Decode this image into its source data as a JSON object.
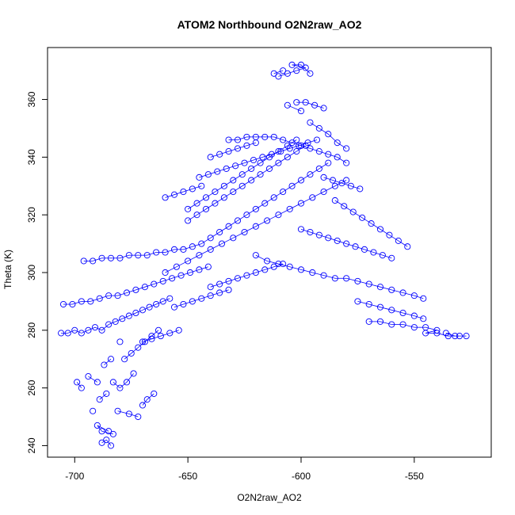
{
  "chart_data": {
    "type": "scatter",
    "title": "ATOM2 Northbound O2N2raw_AO2",
    "xlabel": "O2N2raw_AO2",
    "ylabel": "Theta (K)",
    "xlim": [
      -712,
      -516
    ],
    "ylim": [
      236,
      378
    ],
    "xticks": [
      -700,
      -650,
      -600,
      -550
    ],
    "yticks": [
      240,
      260,
      280,
      300,
      320,
      340,
      360
    ],
    "marker": "open-circle",
    "color": "#0000ff",
    "grid": false,
    "series": [
      {
        "values": "approximate point cloud of O2N2raw_AO2 vs Theta",
        "points": [
          [
            -688,
            241
          ],
          [
            -686,
            242
          ],
          [
            -684,
            240
          ],
          [
            -683,
            244
          ],
          [
            -688,
            245
          ],
          [
            -690,
            247
          ],
          [
            -685,
            245
          ],
          [
            -692,
            252
          ],
          [
            -689,
            256
          ],
          [
            -686,
            258
          ],
          [
            -683,
            262
          ],
          [
            -680,
            260
          ],
          [
            -677,
            262
          ],
          [
            -674,
            265
          ],
          [
            -690,
            262
          ],
          [
            -694,
            264
          ],
          [
            -697,
            260
          ],
          [
            -699,
            262
          ],
          [
            -681,
            252
          ],
          [
            -676,
            251
          ],
          [
            -672,
            250
          ],
          [
            -670,
            254
          ],
          [
            -668,
            256
          ],
          [
            -665,
            258
          ],
          [
            -678,
            270
          ],
          [
            -675,
            272
          ],
          [
            -672,
            274
          ],
          [
            -669,
            276
          ],
          [
            -666,
            278
          ],
          [
            -663,
            280
          ],
          [
            -680,
            276
          ],
          [
            -684,
            270
          ],
          [
            -687,
            268
          ],
          [
            -706,
            279
          ],
          [
            -703,
            279
          ],
          [
            -700,
            280
          ],
          [
            -697,
            279
          ],
          [
            -694,
            280
          ],
          [
            -691,
            281
          ],
          [
            -688,
            280
          ],
          [
            -685,
            282
          ],
          [
            -682,
            283
          ],
          [
            -679,
            284
          ],
          [
            -676,
            285
          ],
          [
            -673,
            286
          ],
          [
            -670,
            287
          ],
          [
            -667,
            288
          ],
          [
            -664,
            289
          ],
          [
            -661,
            290
          ],
          [
            -658,
            291
          ],
          [
            -705,
            289
          ],
          [
            -701,
            289
          ],
          [
            -697,
            290
          ],
          [
            -693,
            290
          ],
          [
            -689,
            291
          ],
          [
            -685,
            292
          ],
          [
            -681,
            292
          ],
          [
            -677,
            293
          ],
          [
            -673,
            294
          ],
          [
            -669,
            295
          ],
          [
            -665,
            296
          ],
          [
            -661,
            297
          ],
          [
            -657,
            298
          ],
          [
            -653,
            299
          ],
          [
            -649,
            300
          ],
          [
            -645,
            301
          ],
          [
            -641,
            302
          ],
          [
            -696,
            304
          ],
          [
            -692,
            304
          ],
          [
            -688,
            305
          ],
          [
            -684,
            305
          ],
          [
            -680,
            305
          ],
          [
            -676,
            306
          ],
          [
            -672,
            306
          ],
          [
            -668,
            306
          ],
          [
            -664,
            307
          ],
          [
            -660,
            307
          ],
          [
            -656,
            308
          ],
          [
            -652,
            308
          ],
          [
            -648,
            309
          ],
          [
            -644,
            310
          ],
          [
            -640,
            312
          ],
          [
            -636,
            314
          ],
          [
            -632,
            316
          ],
          [
            -628,
            318
          ],
          [
            -624,
            320
          ],
          [
            -620,
            322
          ],
          [
            -616,
            324
          ],
          [
            -612,
            326
          ],
          [
            -608,
            328
          ],
          [
            -604,
            330
          ],
          [
            -600,
            332
          ],
          [
            -596,
            334
          ],
          [
            -592,
            336
          ],
          [
            -588,
            338
          ],
          [
            -650,
            318
          ],
          [
            -646,
            320
          ],
          [
            -642,
            322
          ],
          [
            -638,
            324
          ],
          [
            -634,
            326
          ],
          [
            -630,
            328
          ],
          [
            -626,
            330
          ],
          [
            -622,
            332
          ],
          [
            -618,
            334
          ],
          [
            -614,
            336
          ],
          [
            -610,
            338
          ],
          [
            -606,
            340
          ],
          [
            -602,
            342
          ],
          [
            -598,
            344
          ],
          [
            -645,
            333
          ],
          [
            -641,
            334
          ],
          [
            -637,
            335
          ],
          [
            -633,
            336
          ],
          [
            -629,
            337
          ],
          [
            -625,
            338
          ],
          [
            -621,
            339
          ],
          [
            -617,
            340
          ],
          [
            -613,
            341
          ],
          [
            -609,
            342
          ],
          [
            -605,
            343
          ],
          [
            -601,
            344
          ],
          [
            -597,
            345
          ],
          [
            -593,
            346
          ],
          [
            -632,
            346
          ],
          [
            -628,
            346
          ],
          [
            -624,
            347
          ],
          [
            -620,
            347
          ],
          [
            -616,
            347
          ],
          [
            -612,
            347
          ],
          [
            -608,
            346
          ],
          [
            -604,
            345
          ],
          [
            -600,
            344
          ],
          [
            -596,
            343
          ],
          [
            -592,
            342
          ],
          [
            -588,
            341
          ],
          [
            -584,
            340
          ],
          [
            -580,
            338
          ],
          [
            -610,
            368
          ],
          [
            -606,
            369
          ],
          [
            -602,
            370
          ],
          [
            -598,
            371
          ],
          [
            -604,
            372
          ],
          [
            -600,
            372
          ],
          [
            -596,
            369
          ],
          [
            -612,
            369
          ],
          [
            -608,
            370
          ],
          [
            -602,
            359
          ],
          [
            -598,
            359
          ],
          [
            -594,
            358
          ],
          [
            -590,
            357
          ],
          [
            -606,
            358
          ],
          [
            -600,
            356
          ],
          [
            -596,
            352
          ],
          [
            -592,
            350
          ],
          [
            -588,
            348
          ],
          [
            -584,
            345
          ],
          [
            -580,
            343
          ],
          [
            -660,
            300
          ],
          [
            -655,
            302
          ],
          [
            -650,
            304
          ],
          [
            -645,
            306
          ],
          [
            -640,
            308
          ],
          [
            -635,
            310
          ],
          [
            -630,
            312
          ],
          [
            -625,
            314
          ],
          [
            -620,
            316
          ],
          [
            -615,
            318
          ],
          [
            -610,
            320
          ],
          [
            -605,
            322
          ],
          [
            -600,
            324
          ],
          [
            -595,
            326
          ],
          [
            -590,
            328
          ],
          [
            -585,
            330
          ],
          [
            -580,
            332
          ],
          [
            -620,
            306
          ],
          [
            -615,
            304
          ],
          [
            -610,
            303
          ],
          [
            -605,
            302
          ],
          [
            -600,
            301
          ],
          [
            -595,
            300
          ],
          [
            -590,
            299
          ],
          [
            -585,
            298
          ],
          [
            -580,
            298
          ],
          [
            -575,
            297
          ],
          [
            -570,
            296
          ],
          [
            -565,
            295
          ],
          [
            -560,
            294
          ],
          [
            -555,
            293
          ],
          [
            -550,
            292
          ],
          [
            -546,
            291
          ],
          [
            -575,
            290
          ],
          [
            -570,
            289
          ],
          [
            -565,
            288
          ],
          [
            -560,
            287
          ],
          [
            -555,
            286
          ],
          [
            -550,
            285
          ],
          [
            -546,
            284
          ],
          [
            -570,
            283
          ],
          [
            -565,
            283
          ],
          [
            -560,
            282
          ],
          [
            -555,
            282
          ],
          [
            -550,
            281
          ],
          [
            -545,
            281
          ],
          [
            -540,
            280
          ],
          [
            -545,
            279
          ],
          [
            -540,
            279
          ],
          [
            -535,
            278
          ],
          [
            -530,
            278
          ],
          [
            -527,
            278
          ],
          [
            -536,
            279
          ],
          [
            -532,
            278
          ],
          [
            -600,
            315
          ],
          [
            -596,
            314
          ],
          [
            -592,
            313
          ],
          [
            -588,
            312
          ],
          [
            -584,
            311
          ],
          [
            -580,
            310
          ],
          [
            -576,
            309
          ],
          [
            -572,
            308
          ],
          [
            -568,
            307
          ],
          [
            -564,
            306
          ],
          [
            -560,
            305
          ],
          [
            -640,
            295
          ],
          [
            -636,
            296
          ],
          [
            -632,
            297
          ],
          [
            -628,
            298
          ],
          [
            -624,
            299
          ],
          [
            -620,
            300
          ],
          [
            -616,
            301
          ],
          [
            -612,
            302
          ],
          [
            -608,
            303
          ],
          [
            -656,
            288
          ],
          [
            -652,
            289
          ],
          [
            -648,
            290
          ],
          [
            -644,
            291
          ],
          [
            -640,
            292
          ],
          [
            -636,
            293
          ],
          [
            -632,
            294
          ],
          [
            -670,
            276
          ],
          [
            -666,
            277
          ],
          [
            -662,
            278
          ],
          [
            -658,
            279
          ],
          [
            -654,
            280
          ],
          [
            -650,
            322
          ],
          [
            -646,
            324
          ],
          [
            -642,
            326
          ],
          [
            -638,
            328
          ],
          [
            -634,
            330
          ],
          [
            -630,
            332
          ],
          [
            -626,
            334
          ],
          [
            -622,
            336
          ],
          [
            -618,
            338
          ],
          [
            -614,
            340
          ],
          [
            -610,
            342
          ],
          [
            -606,
            344
          ],
          [
            -602,
            346
          ],
          [
            -585,
            325
          ],
          [
            -581,
            323
          ],
          [
            -577,
            321
          ],
          [
            -573,
            319
          ],
          [
            -569,
            317
          ],
          [
            -565,
            315
          ],
          [
            -561,
            313
          ],
          [
            -557,
            311
          ],
          [
            -553,
            309
          ],
          [
            -590,
            333
          ],
          [
            -586,
            332
          ],
          [
            -582,
            331
          ],
          [
            -578,
            330
          ],
          [
            -574,
            329
          ],
          [
            -640,
            340
          ],
          [
            -636,
            341
          ],
          [
            -632,
            342
          ],
          [
            -628,
            343
          ],
          [
            -624,
            344
          ],
          [
            -620,
            345
          ],
          [
            -660,
            326
          ],
          [
            -656,
            327
          ],
          [
            -652,
            328
          ],
          [
            -648,
            329
          ],
          [
            -644,
            330
          ]
        ]
      }
    ]
  }
}
